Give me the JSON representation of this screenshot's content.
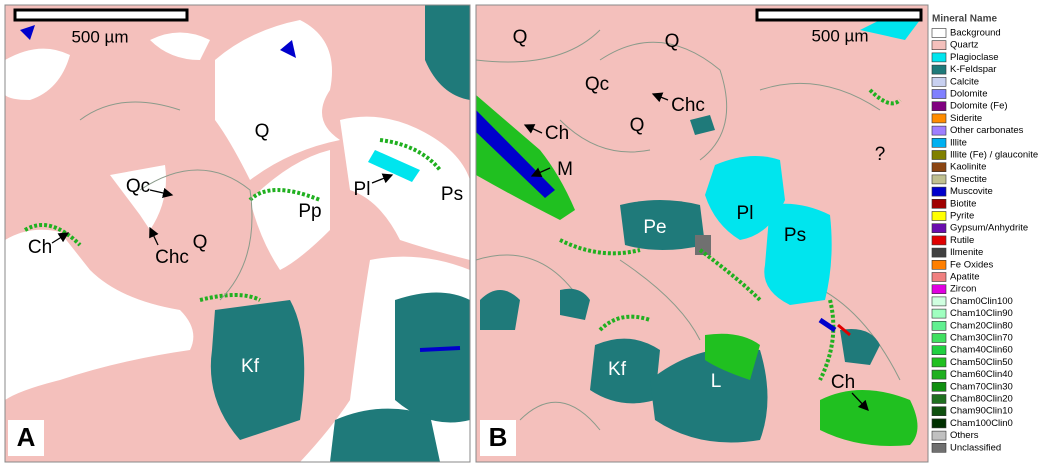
{
  "panels": [
    {
      "letter": "A",
      "scale_bar_label": "500 µm",
      "labels": [
        "Q",
        "Qc",
        "Chc",
        "Q",
        "Ch",
        "Pp",
        "Pl",
        "Ps",
        "Kf"
      ]
    },
    {
      "letter": "B",
      "scale_bar_label": "500 µm",
      "labels": [
        "Q",
        "Q",
        "Qc",
        "Chc",
        "Q",
        "Ch",
        "M",
        "?",
        "Pl",
        "Pe",
        "Ps",
        "Kf",
        "L",
        "Ch"
      ]
    }
  ],
  "legend": {
    "title": "Mineral Name",
    "items": [
      {
        "name": "Background",
        "color": "#ffffff"
      },
      {
        "name": "Quartz",
        "color": "#f4c0bc"
      },
      {
        "name": "Plagioclase",
        "color": "#00e5ee"
      },
      {
        "name": "K-Feldspar",
        "color": "#1f7a7a"
      },
      {
        "name": "Calcite",
        "color": "#c8d0f0"
      },
      {
        "name": "Dolomite",
        "color": "#8080ff"
      },
      {
        "name": "Dolomite (Fe)",
        "color": "#800080"
      },
      {
        "name": "Siderite",
        "color": "#ff8c00"
      },
      {
        "name": "Other carbonates",
        "color": "#9f7fff"
      },
      {
        "name": "Illite",
        "color": "#00b0f0"
      },
      {
        "name": "Illite (Fe) / glauconite",
        "color": "#808000"
      },
      {
        "name": "Kaolinite",
        "color": "#8b4513"
      },
      {
        "name": "Smectite",
        "color": "#c0c090"
      },
      {
        "name": "Muscovite",
        "color": "#0000cc"
      },
      {
        "name": "Biotite",
        "color": "#a00000"
      },
      {
        "name": "Pyrite",
        "color": "#ffff00"
      },
      {
        "name": "Gypsum/Anhydrite",
        "color": "#6a0dad"
      },
      {
        "name": "Rutile",
        "color": "#e00000"
      },
      {
        "name": "Ilmenite",
        "color": "#404040"
      },
      {
        "name": "Fe Oxides",
        "color": "#ff7f00"
      },
      {
        "name": "Apatite",
        "color": "#f08080"
      },
      {
        "name": "Zircon",
        "color": "#e000e0"
      },
      {
        "name": "Cham0Clin100",
        "color": "#d0ffe0"
      },
      {
        "name": "Cham10Clin90",
        "color": "#a0ffc0"
      },
      {
        "name": "Cham20Clin80",
        "color": "#60f090"
      },
      {
        "name": "Cham30Clin70",
        "color": "#40e060"
      },
      {
        "name": "Cham40Clin60",
        "color": "#20d040"
      },
      {
        "name": "Cham50Clin50",
        "color": "#20c020"
      },
      {
        "name": "Cham60Clin40",
        "color": "#20b020"
      },
      {
        "name": "Cham70Clin30",
        "color": "#109010"
      },
      {
        "name": "Cham80Clin20",
        "color": "#207020"
      },
      {
        "name": "Cham90Clin10",
        "color": "#105010"
      },
      {
        "name": "Cham100Clin0",
        "color": "#003000"
      },
      {
        "name": "Others",
        "color": "#c0c0c0"
      },
      {
        "name": "Unclassified",
        "color": "#707070"
      }
    ]
  }
}
